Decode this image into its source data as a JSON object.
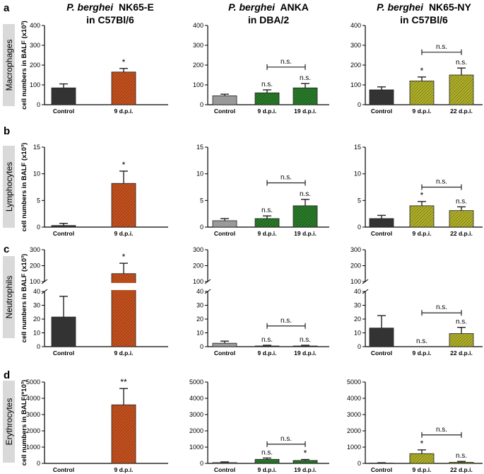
{
  "columns": [
    {
      "species": "P. berghei",
      "strain": "NK65-E",
      "host": "in C57Bl/6"
    },
    {
      "species": "P. berghei",
      "strain": "ANKA",
      "host": "in DBA/2"
    },
    {
      "species": "P. berghei",
      "strain": "NK65-NY",
      "host": "in C57Bl/6"
    }
  ],
  "colors": {
    "control_dark": "#333333",
    "control_gray": "#9a9a9a",
    "nk65e_fill": "#b5431a",
    "anka_fill": "#1f6b1f",
    "nk65ny_fill": "#9a9a1a",
    "row_label_bg": "#d9d9d9"
  },
  "chart_data": [
    {
      "panel": "a",
      "row_label": "Macrophages",
      "ylabel": "cell numbers in BALF (x10³)",
      "type": "bar",
      "column": 0,
      "ylim": [
        0,
        400
      ],
      "ticks": [
        0,
        100,
        200,
        300,
        400
      ],
      "categories": [
        "Control",
        "9 d.p.i."
      ],
      "values": [
        85,
        165
      ],
      "errors": [
        20,
        18
      ],
      "marks": [
        "",
        "*"
      ],
      "bracket": null
    },
    {
      "panel": "a",
      "row_label": "Macrophages",
      "ylabel": "",
      "type": "bar",
      "column": 1,
      "ylim": [
        0,
        400
      ],
      "ticks": [
        0,
        100,
        200,
        300,
        400
      ],
      "categories": [
        "Control",
        "9 d.p.i.",
        "19 d.p.i."
      ],
      "values": [
        45,
        60,
        85
      ],
      "errors": [
        8,
        15,
        22
      ],
      "marks": [
        "",
        "n.s.",
        "n.s."
      ],
      "bracket": {
        "from": 1,
        "to": 2,
        "label": "n.s.",
        "y": 190
      }
    },
    {
      "panel": "a",
      "row_label": "Macrophages",
      "ylabel": "",
      "type": "bar",
      "column": 2,
      "ylim": [
        0,
        400
      ],
      "ticks": [
        0,
        100,
        200,
        300,
        400
      ],
      "categories": [
        "Control",
        "9 d.p.i.",
        "22 d.p.i."
      ],
      "values": [
        75,
        120,
        150
      ],
      "errors": [
        15,
        20,
        35
      ],
      "marks": [
        "",
        "*",
        "n.s."
      ],
      "bracket": {
        "from": 1,
        "to": 2,
        "label": "n.s.",
        "y": 265
      }
    },
    {
      "panel": "b",
      "row_label": "Lymphocytes",
      "ylabel": "cell numbers in BALF (x10³)",
      "type": "bar",
      "column": 0,
      "ylim": [
        0,
        15
      ],
      "ticks": [
        0,
        5,
        10,
        15
      ],
      "categories": [
        "Control",
        "9 d.p.i."
      ],
      "values": [
        0.3,
        8.2
      ],
      "errors": [
        0.4,
        2.3
      ],
      "marks": [
        "",
        "*"
      ],
      "bracket": null
    },
    {
      "panel": "b",
      "row_label": "Lymphocytes",
      "ylabel": "",
      "type": "bar",
      "column": 1,
      "ylim": [
        0,
        15
      ],
      "ticks": [
        0,
        5,
        10,
        15
      ],
      "categories": [
        "Control",
        "9 d.p.i.",
        "19 d.p.i."
      ],
      "values": [
        1.2,
        1.6,
        4.0
      ],
      "errors": [
        0.4,
        0.5,
        1.2
      ],
      "marks": [
        "",
        "n.s.",
        "n.s."
      ],
      "bracket": {
        "from": 1,
        "to": 2,
        "label": "n.s.",
        "y": 8.3
      }
    },
    {
      "panel": "b",
      "row_label": "Lymphocytes",
      "ylabel": "",
      "type": "bar",
      "column": 2,
      "ylim": [
        0,
        15
      ],
      "ticks": [
        0,
        5,
        10,
        15
      ],
      "categories": [
        "Control",
        "9 d.p.i.",
        "22 d.p.i."
      ],
      "values": [
        1.6,
        4.0,
        3.1
      ],
      "errors": [
        0.6,
        0.8,
        0.7
      ],
      "marks": [
        "",
        "*",
        "n.s."
      ],
      "bracket": {
        "from": 1,
        "to": 2,
        "label": "n.s.",
        "y": 7.5
      }
    },
    {
      "panel": "c",
      "row_label": "Neutrophils",
      "ylabel": "cell numbers in BALF (x10³)",
      "type": "bar",
      "column": 0,
      "broken_axis": true,
      "ylim_lower": [
        0,
        40
      ],
      "ticks_lower": [
        0,
        10,
        20,
        30,
        40
      ],
      "ylim_upper": [
        100,
        300
      ],
      "ticks_upper": [
        100,
        200,
        300
      ],
      "categories": [
        "Control",
        "9 d.p.i."
      ],
      "values": [
        21.5,
        150
      ],
      "errors": [
        15,
        65
      ],
      "marks": [
        "",
        "*"
      ],
      "bracket": null
    },
    {
      "panel": "c",
      "row_label": "Neutrophils",
      "ylabel": "",
      "type": "bar",
      "column": 1,
      "broken_axis": true,
      "ylim_lower": [
        0,
        40
      ],
      "ticks_lower": [
        0,
        10,
        20,
        30,
        40
      ],
      "ylim_upper": [
        100,
        300
      ],
      "ticks_upper": [
        100,
        200,
        300
      ],
      "categories": [
        "Control",
        "9 d.p.i.",
        "19 d.p.i."
      ],
      "values": [
        2.5,
        0.5,
        0.5
      ],
      "errors": [
        1.5,
        0.5,
        0.5
      ],
      "marks": [
        "",
        "n.s.",
        "n.s."
      ],
      "bracket": {
        "from": 1,
        "to": 2,
        "label": "n.s.",
        "y": 15
      }
    },
    {
      "panel": "c",
      "row_label": "Neutrophils",
      "ylabel": "",
      "type": "bar",
      "column": 2,
      "broken_axis": true,
      "ylim_lower": [
        0,
        40
      ],
      "ticks_lower": [
        0,
        10,
        20,
        30,
        40
      ],
      "ylim_upper": [
        100,
        300
      ],
      "ticks_upper": [
        100,
        200,
        300
      ],
      "categories": [
        "Control",
        "9 d.p.i.",
        "22 d.p.i."
      ],
      "values": [
        13.5,
        0,
        9.5
      ],
      "errors": [
        9,
        0,
        4.5
      ],
      "marks": [
        "",
        "n.s.",
        "n.s."
      ],
      "bracket": {
        "from": 1,
        "to": 2,
        "label": "n.s.",
        "y": 24.5
      }
    },
    {
      "panel": "d",
      "row_label": "Erythrocytes",
      "ylabel": "cell numbers in BALF(*10³)",
      "type": "bar",
      "column": 0,
      "ylim": [
        0,
        5000
      ],
      "ticks": [
        0,
        1000,
        2000,
        3000,
        4000,
        5000
      ],
      "categories": [
        "Control",
        "9 d.p.i."
      ],
      "values": [
        10,
        3600
      ],
      "errors": [
        0,
        1000
      ],
      "marks": [
        "",
        "**"
      ],
      "bracket": null
    },
    {
      "panel": "d",
      "row_label": "Erythrocytes",
      "ylabel": "",
      "type": "bar",
      "column": 1,
      "ylim": [
        0,
        5000
      ],
      "ticks": [
        0,
        1000,
        2000,
        3000,
        4000,
        5000
      ],
      "categories": [
        "Control",
        "9 d.p.i.",
        "19 d.p.i."
      ],
      "values": [
        50,
        250,
        180
      ],
      "errors": [
        40,
        80,
        60
      ],
      "marks": [
        "",
        "n.s.",
        "*"
      ],
      "bracket": {
        "from": 1,
        "to": 2,
        "label": "n.s.",
        "y": 1180
      }
    },
    {
      "panel": "d",
      "row_label": "Erythrocytes",
      "ylabel": "",
      "type": "bar",
      "column": 2,
      "ylim": [
        0,
        5000
      ],
      "ticks": [
        0,
        1000,
        2000,
        3000,
        4000,
        5000
      ],
      "categories": [
        "Control",
        "9 d.p.i.",
        "22 d.p.i."
      ],
      "values": [
        20,
        600,
        70
      ],
      "errors": [
        20,
        230,
        50
      ],
      "marks": [
        "",
        "*",
        "n.s."
      ],
      "bracket": {
        "from": 1,
        "to": 2,
        "label": "n.s.",
        "y": 1750
      }
    }
  ]
}
